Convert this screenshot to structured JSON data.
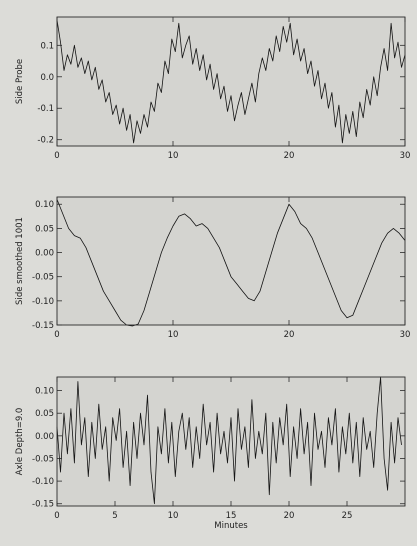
{
  "chart_data": [
    {
      "type": "line",
      "ylabel": "Side Probe",
      "xlabel": "",
      "xlim": [
        0,
        30
      ],
      "ylim": [
        -0.22,
        0.19
      ],
      "xticks": [
        0,
        10,
        20,
        30
      ],
      "xtick_labels": [
        "0",
        "10",
        "20",
        "30"
      ],
      "yticks": [
        -0.2,
        -0.1,
        0.0,
        0.1
      ],
      "ytick_labels": [
        "-0.2",
        "-0.1",
        "0.0",
        "0.1"
      ],
      "grid": false,
      "series": [
        {
          "x": [
            0,
            0.3,
            0.6,
            0.9,
            1.2,
            1.5,
            1.8,
            2.1,
            2.4,
            2.7,
            3.0,
            3.3,
            3.6,
            3.9,
            4.2,
            4.5,
            4.8,
            5.1,
            5.4,
            5.7,
            6.0,
            6.3,
            6.6,
            6.9,
            7.2,
            7.5,
            7.8,
            8.1,
            8.4,
            8.7,
            9.0,
            9.3,
            9.6,
            9.9,
            10.2,
            10.5,
            10.8,
            11.1,
            11.4,
            11.7,
            12.0,
            12.3,
            12.6,
            12.9,
            13.2,
            13.5,
            13.8,
            14.1,
            14.4,
            14.7,
            15.0,
            15.3,
            15.6,
            15.9,
            16.2,
            16.5,
            16.8,
            17.1,
            17.4,
            17.7,
            18.0,
            18.3,
            18.6,
            18.9,
            19.2,
            19.5,
            19.8,
            20.1,
            20.4,
            20.7,
            21.0,
            21.3,
            21.6,
            21.9,
            22.2,
            22.5,
            22.8,
            23.1,
            23.4,
            23.7,
            24.0,
            24.3,
            24.6,
            24.9,
            25.2,
            25.5,
            25.8,
            26.1,
            26.4,
            26.7,
            27.0,
            27.3,
            27.6,
            27.9,
            28.2,
            28.5,
            28.8,
            29.1,
            29.4,
            29.7,
            30.0
          ],
          "values": [
            0.18,
            0.11,
            0.02,
            0.07,
            0.04,
            0.1,
            0.03,
            0.06,
            0.01,
            0.05,
            -0.01,
            0.03,
            -0.04,
            -0.01,
            -0.08,
            -0.05,
            -0.12,
            -0.09,
            -0.15,
            -0.1,
            -0.17,
            -0.12,
            -0.21,
            -0.14,
            -0.18,
            -0.12,
            -0.16,
            -0.08,
            -0.11,
            -0.02,
            -0.05,
            0.05,
            0.01,
            0.12,
            0.08,
            0.17,
            0.06,
            0.1,
            0.13,
            0.04,
            0.09,
            0.02,
            0.07,
            -0.01,
            0.04,
            -0.04,
            0.01,
            -0.07,
            -0.03,
            -0.11,
            -0.06,
            -0.14,
            -0.09,
            -0.05,
            -0.12,
            -0.07,
            -0.02,
            -0.08,
            0.01,
            0.06,
            0.02,
            0.09,
            0.05,
            0.13,
            0.08,
            0.16,
            0.11,
            0.17,
            0.07,
            0.12,
            0.05,
            0.09,
            0.01,
            0.05,
            -0.03,
            0.02,
            -0.07,
            -0.02,
            -0.1,
            -0.05,
            -0.16,
            -0.09,
            -0.21,
            -0.12,
            -0.18,
            -0.11,
            -0.19,
            -0.08,
            -0.13,
            -0.04,
            -0.09,
            0.0,
            -0.06,
            0.03,
            0.09,
            0.02,
            0.17,
            0.06,
            0.11,
            0.03,
            0.07
          ]
        }
      ]
    },
    {
      "type": "line",
      "ylabel": "Side smoothed 1001",
      "xlabel": "",
      "xlim": [
        0,
        30
      ],
      "ylim": [
        -0.15,
        0.115
      ],
      "xticks": [
        0,
        10,
        20,
        30
      ],
      "xtick_labels": [
        "0",
        "10",
        "20",
        "30"
      ],
      "yticks": [
        -0.15,
        -0.1,
        -0.05,
        0.0,
        0.05,
        0.1
      ],
      "ytick_labels": [
        "-0.15",
        "-0.10",
        "-0.05",
        "0.00",
        "0.05",
        "0.10"
      ],
      "grid": false,
      "series": [
        {
          "x": [
            0,
            0.5,
            1.0,
            1.5,
            2.0,
            2.5,
            3.0,
            3.5,
            4.0,
            4.5,
            5.0,
            5.5,
            6.0,
            6.5,
            7.0,
            7.5,
            8.0,
            8.5,
            9.0,
            9.5,
            10.0,
            10.5,
            11.0,
            11.5,
            12.0,
            12.5,
            13.0,
            13.5,
            14.0,
            14.5,
            15.0,
            15.5,
            16.0,
            16.5,
            17.0,
            17.5,
            18.0,
            18.5,
            19.0,
            19.5,
            20.0,
            20.5,
            21.0,
            21.5,
            22.0,
            22.5,
            23.0,
            23.5,
            24.0,
            24.5,
            25.0,
            25.5,
            26.0,
            26.5,
            27.0,
            27.5,
            28.0,
            28.5,
            29.0,
            29.5,
            30.0
          ],
          "values": [
            0.11,
            0.08,
            0.05,
            0.035,
            0.03,
            0.01,
            -0.02,
            -0.05,
            -0.08,
            -0.1,
            -0.12,
            -0.14,
            -0.15,
            -0.152,
            -0.148,
            -0.12,
            -0.08,
            -0.04,
            0.0,
            0.03,
            0.055,
            0.075,
            0.08,
            0.07,
            0.055,
            0.06,
            0.05,
            0.03,
            0.01,
            -0.02,
            -0.05,
            -0.065,
            -0.08,
            -0.095,
            -0.1,
            -0.08,
            -0.04,
            0.0,
            0.04,
            0.07,
            0.1,
            0.085,
            0.06,
            0.05,
            0.03,
            0.0,
            -0.03,
            -0.06,
            -0.09,
            -0.12,
            -0.135,
            -0.13,
            -0.1,
            -0.07,
            -0.04,
            -0.01,
            0.02,
            0.04,
            0.05,
            0.04,
            0.025
          ]
        }
      ]
    },
    {
      "type": "line",
      "ylabel": "Axle Depth=9.0",
      "xlabel": "Minutes",
      "xlim": [
        0,
        30
      ],
      "ylim": [
        -0.155,
        0.13
      ],
      "xticks": [
        0,
        5,
        10,
        15,
        20,
        25
      ],
      "xtick_labels": [
        "0",
        "5",
        "10",
        "15",
        "20",
        "25"
      ],
      "yticks": [
        -0.15,
        -0.1,
        -0.05,
        0.0,
        0.05,
        0.1
      ],
      "ytick_labels": [
        "-0.15",
        "-0.10",
        "-0.05",
        "0.00",
        "0.05",
        "0.10"
      ],
      "grid": false,
      "series": [
        {
          "x": [
            0,
            0.3,
            0.6,
            0.9,
            1.2,
            1.5,
            1.8,
            2.1,
            2.4,
            2.7,
            3.0,
            3.3,
            3.6,
            3.9,
            4.2,
            4.5,
            4.8,
            5.1,
            5.4,
            5.7,
            6.0,
            6.3,
            6.6,
            6.9,
            7.2,
            7.5,
            7.8,
            8.1,
            8.4,
            8.7,
            9.0,
            9.3,
            9.6,
            9.9,
            10.2,
            10.5,
            10.8,
            11.1,
            11.4,
            11.7,
            12.0,
            12.3,
            12.6,
            12.9,
            13.2,
            13.5,
            13.8,
            14.1,
            14.4,
            14.7,
            15.0,
            15.3,
            15.6,
            15.9,
            16.2,
            16.5,
            16.8,
            17.1,
            17.4,
            17.7,
            18.0,
            18.3,
            18.6,
            18.9,
            19.2,
            19.5,
            19.8,
            20.1,
            20.4,
            20.7,
            21.0,
            21.3,
            21.6,
            21.9,
            22.2,
            22.5,
            22.8,
            23.1,
            23.4,
            23.7,
            24.0,
            24.3,
            24.6,
            24.9,
            25.2,
            25.5,
            25.8,
            26.1,
            26.4,
            26.7,
            27.0,
            27.3,
            27.6,
            27.9,
            28.2,
            28.5,
            28.8,
            29.1,
            29.4,
            29.7
          ],
          "values": [
            0.02,
            -0.08,
            0.05,
            -0.04,
            0.06,
            -0.06,
            0.12,
            -0.02,
            0.04,
            -0.09,
            0.03,
            -0.05,
            0.07,
            -0.03,
            0.02,
            -0.1,
            0.04,
            -0.01,
            0.06,
            -0.07,
            0.01,
            -0.11,
            0.03,
            -0.05,
            0.05,
            -0.02,
            0.09,
            -0.08,
            -0.15,
            0.02,
            -0.04,
            0.06,
            -0.06,
            0.03,
            -0.09,
            0.01,
            0.05,
            -0.03,
            0.04,
            -0.07,
            0.02,
            -0.05,
            0.07,
            -0.02,
            0.03,
            -0.08,
            0.05,
            -0.04,
            0.01,
            -0.06,
            0.04,
            -0.1,
            0.06,
            -0.03,
            0.02,
            -0.07,
            0.08,
            -0.05,
            0.01,
            -0.04,
            0.05,
            -0.13,
            0.03,
            -0.06,
            0.04,
            -0.02,
            0.07,
            -0.09,
            0.02,
            -0.05,
            0.06,
            -0.04,
            0.03,
            -0.11,
            0.05,
            -0.03,
            0.01,
            -0.07,
            0.04,
            -0.02,
            0.06,
            -0.08,
            0.02,
            -0.04,
            0.05,
            -0.06,
            0.03,
            -0.09,
            0.04,
            -0.03,
            0.01,
            -0.07,
            0.05,
            0.13,
            -0.05,
            -0.12,
            0.03,
            -0.06,
            0.04,
            -0.02
          ]
        }
      ]
    }
  ]
}
